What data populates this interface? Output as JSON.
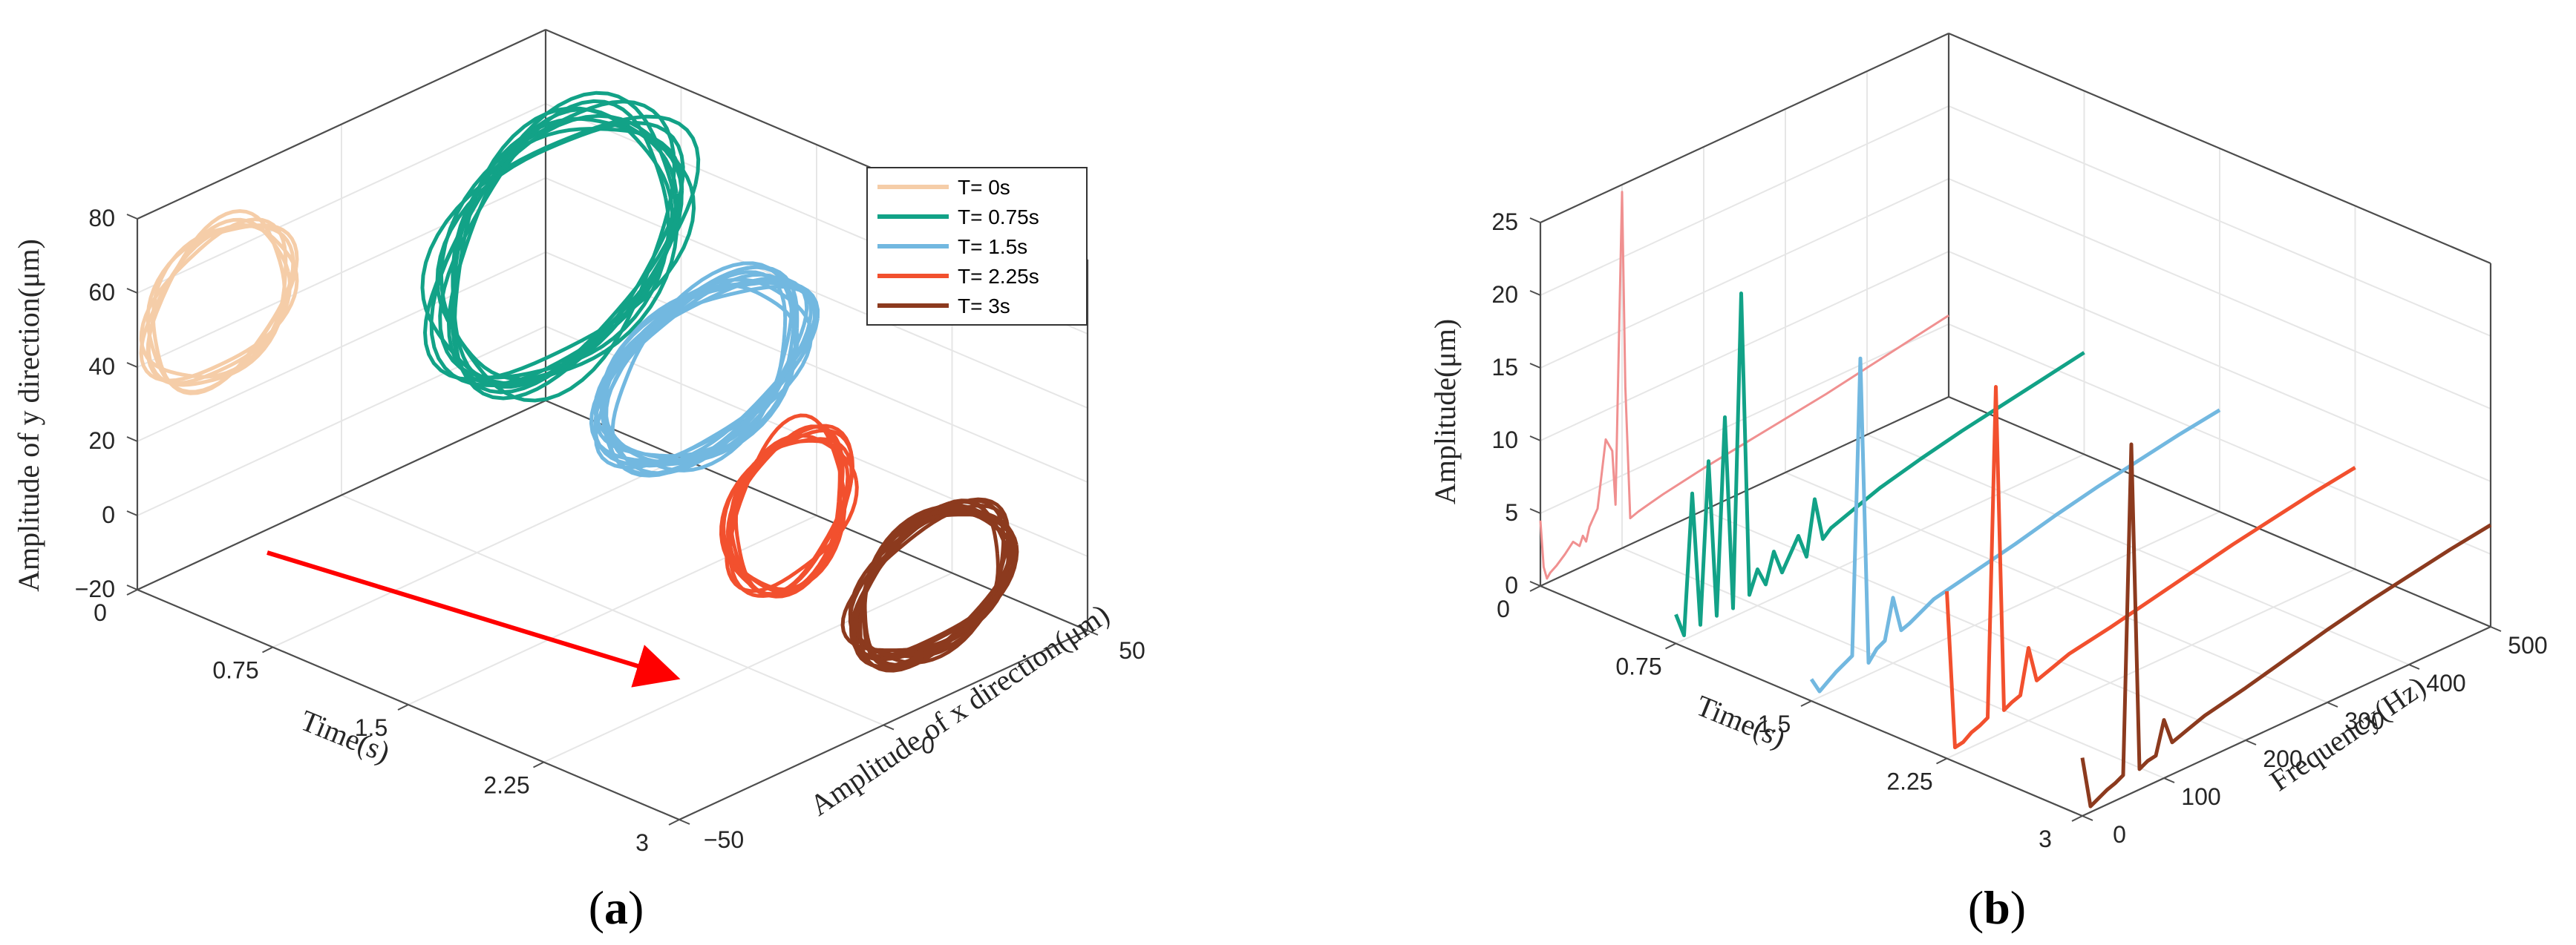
{
  "chart_data": [
    {
      "panel_label": "a",
      "type": "scatter",
      "title": "",
      "zlabel": "Amplitude of y direction(μm)",
      "xlabel": "Time(s)",
      "ylabel": "Amplitude of x direction(μm)",
      "time_ticks": [
        "0",
        "0.75",
        "1.5",
        "2.25",
        "3"
      ],
      "x_ticks": [
        "−50",
        "0",
        "50"
      ],
      "z_ticks": [
        "−20",
        "0",
        "20",
        "40",
        "60",
        "80"
      ],
      "zlim": [
        -20,
        80
      ],
      "xlim": [
        -50,
        50
      ],
      "timelim": [
        0,
        3
      ],
      "legend_position": "top-right",
      "annotation": "red arrow indicating increasing time",
      "series": [
        {
          "name": "T= 0s",
          "time": 0,
          "color": "#F5CDA8",
          "center_x": -30,
          "center_y": 47,
          "radius_x": 18,
          "radius_y": 20,
          "loops": 6
        },
        {
          "name": "T= 0.75s",
          "time": 0.75,
          "color": "#12A287",
          "center_x": 20,
          "center_y": 52,
          "radius_x": 30,
          "radius_y": 34,
          "loops": 10
        },
        {
          "name": "T= 1.5s",
          "time": 1.5,
          "color": "#72B8E0",
          "center_x": 22,
          "center_y": 33,
          "radius_x": 24,
          "radius_y": 22,
          "loops": 12
        },
        {
          "name": "T= 2.25s",
          "time": 2.25,
          "color": "#F2502E",
          "center_x": 10,
          "center_y": 17,
          "radius_x": 15,
          "radius_y": 21,
          "loops": 8
        },
        {
          "name": "T= 3s",
          "time": 3,
          "color": "#8C3A1E",
          "center_x": 12,
          "center_y": 12,
          "radius_x": 19,
          "radius_y": 18,
          "loops": 12
        }
      ]
    },
    {
      "panel_label": "b",
      "type": "line",
      "title": "",
      "zlabel": "Amplitude(μm)",
      "xlabel": "Time(s)",
      "ylabel": "Frequency(Hz)",
      "time_ticks": [
        "0",
        "0.75",
        "1.5",
        "2.25",
        "3"
      ],
      "freq_ticks": [
        "0",
        "100",
        "200",
        "300",
        "400",
        "500"
      ],
      "z_ticks": [
        "0",
        "5",
        "10",
        "15",
        "20",
        "25"
      ],
      "zlim": [
        0,
        25
      ],
      "freqlim": [
        0,
        500
      ],
      "timelim": [
        0,
        3
      ],
      "series": [
        {
          "name": "T= 0s",
          "time": 0,
          "color": "#F09090",
          "freq": [
            0,
            4,
            8,
            12,
            20,
            30,
            40,
            48,
            52,
            56,
            60,
            70,
            80,
            88,
            92,
            96,
            100,
            104,
            110,
            120,
            135,
            150,
            200,
            250,
            300,
            350,
            400,
            450,
            500
          ],
          "amp": [
            4.5,
            1.2,
            0.3,
            0.6,
            0.9,
            1.4,
            2.0,
            1.5,
            2.1,
            1.6,
            2.5,
            3.5,
            8.0,
            7.0,
            3.2,
            14.0,
            24.5,
            11.0,
            1.8,
            2.0,
            2.2,
            2.4,
            2.9,
            3.3,
            3.7,
            4.1,
            4.6,
            5.1,
            5.6
          ]
        },
        {
          "name": "T= 0.75s",
          "time": 0.75,
          "color": "#12A287",
          "freq": [
            0,
            10,
            20,
            30,
            40,
            50,
            60,
            70,
            80,
            90,
            100,
            110,
            120,
            130,
            140,
            150,
            160,
            170,
            180,
            190,
            200,
            220,
            250,
            300,
            350,
            400,
            450,
            500
          ],
          "amp": [
            2.0,
            0.3,
            9.8,
            0.5,
            11.5,
            0.6,
            14.0,
            0.6,
            22.0,
            1.0,
            2.5,
            1.2,
            3.2,
            1.5,
            2.5,
            3.5,
            1.8,
            5.5,
            2.5,
            3.0,
            3.2,
            3.6,
            4.2,
            4.9,
            5.5,
            6.0,
            6.5,
            7.0
          ]
        },
        {
          "name": "T= 1.5s",
          "time": 1.5,
          "color": "#72B8E0",
          "freq": [
            0,
            10,
            20,
            30,
            40,
            50,
            60,
            70,
            80,
            90,
            100,
            110,
            120,
            130,
            140,
            150,
            200,
            250,
            300,
            350,
            400,
            450,
            500
          ],
          "amp": [
            1.5,
            0.4,
            0.8,
            1.2,
            1.5,
            1.8,
            22.0,
            0.8,
            1.5,
            1.8,
            4.5,
            2.0,
            2.2,
            2.5,
            2.8,
            3.1,
            3.7,
            4.3,
            5.0,
            5.6,
            6.1,
            6.6,
            7.0
          ]
        },
        {
          "name": "T= 2.25s",
          "time": 2.25,
          "color": "#F2502E",
          "freq": [
            0,
            10,
            20,
            30,
            40,
            50,
            60,
            70,
            80,
            90,
            100,
            110,
            120,
            130,
            140,
            150,
            200,
            250,
            300,
            350,
            400,
            450,
            500
          ],
          "amp": [
            11.5,
            0.5,
            0.6,
            1.0,
            1.2,
            1.5,
            24.0,
            1.5,
            1.8,
            2.0,
            5.0,
            2.5,
            2.7,
            2.9,
            3.1,
            3.3,
            3.8,
            4.4,
            5.0,
            5.6,
            6.1,
            6.6,
            7.0
          ]
        },
        {
          "name": "T= 3s",
          "time": 3,
          "color": "#8C3A1E",
          "freq": [
            0,
            10,
            20,
            30,
            40,
            50,
            60,
            70,
            80,
            90,
            100,
            110,
            120,
            130,
            140,
            150,
            200,
            250,
            300,
            350,
            400,
            450,
            500
          ],
          "amp": [
            4.0,
            0.4,
            0.7,
            1.0,
            1.2,
            1.5,
            24.0,
            1.4,
            1.7,
            1.8,
            4.0,
            2.2,
            2.4,
            2.6,
            2.8,
            3.0,
            3.6,
            4.3,
            5.0,
            5.6,
            6.1,
            6.6,
            7.0
          ]
        }
      ]
    }
  ]
}
